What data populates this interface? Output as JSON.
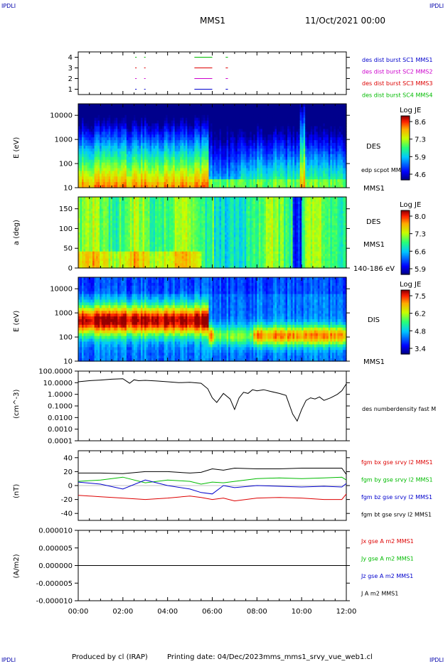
{
  "header": {
    "corner_left": "IPDLI",
    "corner_right": "IPDLI",
    "spacecraft": "MMS1",
    "date": "11/Oct/2021 00:00"
  },
  "footer": {
    "produced_by": "Produced by cl (IRAP)",
    "printing_date": "Printing date: 04/Dec/2023",
    "filename": "mms_mms1_srvy_vue_web1.cl",
    "corner_left": "IPDLI",
    "corner_right": "IPDLI"
  },
  "colors": {
    "mms1": "#0000cc",
    "mms2": "#cc00cc",
    "mms3": "#dd0000",
    "mms4": "#00bb00",
    "bx": "#dd0000",
    "by": "#00bb00",
    "bz": "#0000cc",
    "bt": "#000000"
  },
  "time_axis": {
    "start_hours": 0,
    "end_hours": 12,
    "tick_labels": [
      "00:00",
      "02:00",
      "04:00",
      "06:00",
      "08:00",
      "10:00",
      "12:00"
    ]
  },
  "chart_data": [
    {
      "id": "burst",
      "type": "line",
      "ylim": [
        0.5,
        4.5
      ],
      "yticks": [
        "1",
        "2",
        "3",
        "4"
      ],
      "legend": [
        {
          "label": "des dist burst SC1 MMS1",
          "color": "#0000cc"
        },
        {
          "label": "des dist burst SC2 MMS2",
          "color": "#cc00cc"
        },
        {
          "label": "des dist burst SC3 MMS3",
          "color": "#dd0000"
        },
        {
          "label": "des dist burst SC4 MMS4",
          "color": "#00bb00"
        }
      ],
      "series": [
        {
          "level": 1,
          "color": "#0000cc",
          "intervals": [
            [
              2.55,
              2.6
            ],
            [
              2.95,
              3.0
            ],
            [
              5.2,
              6.0
            ],
            [
              6.6,
              6.7
            ]
          ]
        },
        {
          "level": 2,
          "color": "#cc00cc",
          "intervals": [
            [
              2.55,
              2.6
            ],
            [
              2.95,
              3.0
            ],
            [
              5.2,
              6.0
            ],
            [
              6.6,
              6.7
            ]
          ]
        },
        {
          "level": 3,
          "color": "#dd0000",
          "intervals": [
            [
              2.55,
              2.6
            ],
            [
              2.95,
              3.0
            ],
            [
              5.2,
              6.0
            ],
            [
              6.6,
              6.7
            ]
          ]
        },
        {
          "level": 4,
          "color": "#00bb00",
          "intervals": [
            [
              2.55,
              2.6
            ],
            [
              2.95,
              3.0
            ],
            [
              5.2,
              6.0
            ],
            [
              6.6,
              6.7
            ]
          ]
        }
      ]
    },
    {
      "id": "des_energy",
      "type": "heatmap",
      "ylabel": "E (eV)",
      "yscale": "log",
      "ylim": [
        10,
        30000
      ],
      "yticks": [
        "10",
        "100",
        "1000",
        "10000"
      ],
      "label": "DES",
      "overlay_label": "edp scpot MMS1",
      "sc_label": "MMS1",
      "colorbar": {
        "title": "Log JE",
        "ticks": [
          "8.6",
          "7.3",
          "5.9",
          "4.6"
        ]
      }
    },
    {
      "id": "des_pitch",
      "type": "heatmap",
      "ylabel": "a (deg)",
      "ylim": [
        0,
        180
      ],
      "yticks": [
        "0",
        "50",
        "100",
        "150"
      ],
      "label": "DES",
      "sc_label": "MMS1",
      "energy_label": "140-186 eV",
      "colorbar": {
        "title": "Log JE",
        "ticks": [
          "8.0",
          "7.3",
          "6.6",
          "5.9"
        ]
      }
    },
    {
      "id": "dis_energy",
      "type": "heatmap",
      "ylabel": "E (eV)",
      "yscale": "log",
      "ylim": [
        10,
        30000
      ],
      "yticks": [
        "10",
        "100",
        "1000",
        "10000"
      ],
      "label": "DIS",
      "sc_label": "MMS1",
      "colorbar": {
        "title": "Log JE",
        "ticks": [
          "7.5",
          "6.2",
          "4.8",
          "3.4"
        ]
      }
    },
    {
      "id": "density",
      "type": "line",
      "ylabel": "(cm^-3)",
      "yscale": "log",
      "ylim": [
        0.0001,
        100
      ],
      "yticks": [
        "100.0000",
        "10.0000",
        "1.0000",
        "0.1000",
        "0.0100",
        "0.0010",
        "0.0001"
      ],
      "legend": [
        {
          "label": "des numberdensity fast M",
          "color": "#000000"
        }
      ],
      "series": [
        {
          "name": "des numberdensity fast M",
          "color": "#000000",
          "x": [
            0.0,
            0.5,
            1.0,
            1.5,
            2.0,
            2.3,
            2.5,
            2.7,
            3.0,
            3.5,
            4.0,
            4.5,
            5.0,
            5.5,
            5.8,
            6.0,
            6.2,
            6.5,
            6.8,
            7.0,
            7.2,
            7.4,
            7.6,
            7.8,
            8.0,
            8.3,
            8.6,
            9.0,
            9.3,
            9.6,
            9.8,
            10.0,
            10.2,
            10.4,
            10.6,
            10.8,
            11.0,
            11.3,
            11.6,
            11.8,
            12.0
          ],
          "y": [
            12,
            15,
            17,
            20,
            22,
            9,
            18,
            15,
            16,
            14,
            12,
            10,
            11,
            9,
            3,
            0.5,
            0.2,
            1.2,
            0.4,
            0.05,
            0.5,
            1.5,
            1.2,
            2.5,
            2.0,
            2.5,
            1.8,
            1.2,
            0.8,
            0.02,
            0.005,
            0.05,
            0.3,
            0.5,
            0.4,
            0.6,
            0.3,
            0.5,
            1.0,
            2.0,
            8
          ]
        }
      ]
    },
    {
      "id": "magnetic_field",
      "type": "line",
      "ylabel": "(nT)",
      "ylim": [
        -50,
        50
      ],
      "yticks": [
        "40",
        "20",
        "0",
        "-20",
        "-40"
      ],
      "legend": [
        {
          "label": "fgm bx gse srvy l2 MMS1",
          "color": "#dd0000"
        },
        {
          "label": "fgm by gse srvy l2 MMS1",
          "color": "#00bb00"
        },
        {
          "label": "fgm bz gse srvy l2 MMS1",
          "color": "#0000cc"
        },
        {
          "label": "fgm bt gse srvy l2 MMS1",
          "color": "#000000"
        }
      ],
      "series": [
        {
          "name": "bx",
          "color": "#dd0000",
          "x": [
            0,
            1,
            2,
            3,
            4,
            5,
            5.5,
            6,
            6.5,
            7,
            8,
            9,
            10,
            11,
            11.8,
            12
          ],
          "y": [
            -14,
            -16,
            -18,
            -20,
            -18,
            -15,
            -17,
            -20,
            -18,
            -22,
            -18,
            -17,
            -18,
            -20,
            -20,
            -12
          ]
        },
        {
          "name": "by",
          "color": "#00bb00",
          "x": [
            0,
            1,
            2,
            3,
            4,
            5,
            5.5,
            6,
            6.5,
            7,
            8,
            9,
            10,
            11,
            11.8,
            12
          ],
          "y": [
            6,
            8,
            12,
            4,
            8,
            6,
            2,
            5,
            4,
            6,
            10,
            11,
            10,
            11,
            12,
            8
          ]
        },
        {
          "name": "bz",
          "color": "#0000cc",
          "x": [
            0,
            1,
            2,
            3,
            4,
            5,
            5.5,
            6,
            6.5,
            7,
            8,
            9,
            10,
            11,
            11.8,
            12
          ],
          "y": [
            5,
            2,
            -5,
            8,
            0,
            -5,
            -10,
            -12,
            0,
            -3,
            0,
            -1,
            -2,
            -1,
            -2,
            3
          ]
        },
        {
          "name": "bt",
          "color": "#000000",
          "x": [
            0,
            1,
            2,
            3,
            4,
            5,
            5.5,
            6,
            6.5,
            7,
            8,
            9,
            10,
            11,
            11.8,
            12
          ],
          "y": [
            18,
            18,
            17,
            20,
            20,
            18,
            19,
            24,
            22,
            25,
            24,
            24,
            25,
            25,
            25,
            16
          ]
        }
      ]
    },
    {
      "id": "current_density",
      "type": "line",
      "ylabel": "(A/m2)",
      "ylim": [
        -1e-05,
        1e-05
      ],
      "yticks": [
        "0.000010",
        "0.000005",
        "0.000000",
        "-0.000005",
        "-0.000010"
      ],
      "legend": [
        {
          "label": "Jx gse A m2 MMS1",
          "color": "#dd0000"
        },
        {
          "label": "Jy gse A m2 MMS1",
          "color": "#00bb00"
        },
        {
          "label": "Jz gse A m2 MMS1",
          "color": "#0000cc"
        },
        {
          "label": "J A m2 MMS1",
          "color": "#000000"
        }
      ],
      "series": [
        {
          "name": "J",
          "color": "#000000",
          "x": [
            0,
            12
          ],
          "y": [
            0,
            0
          ]
        }
      ]
    }
  ]
}
